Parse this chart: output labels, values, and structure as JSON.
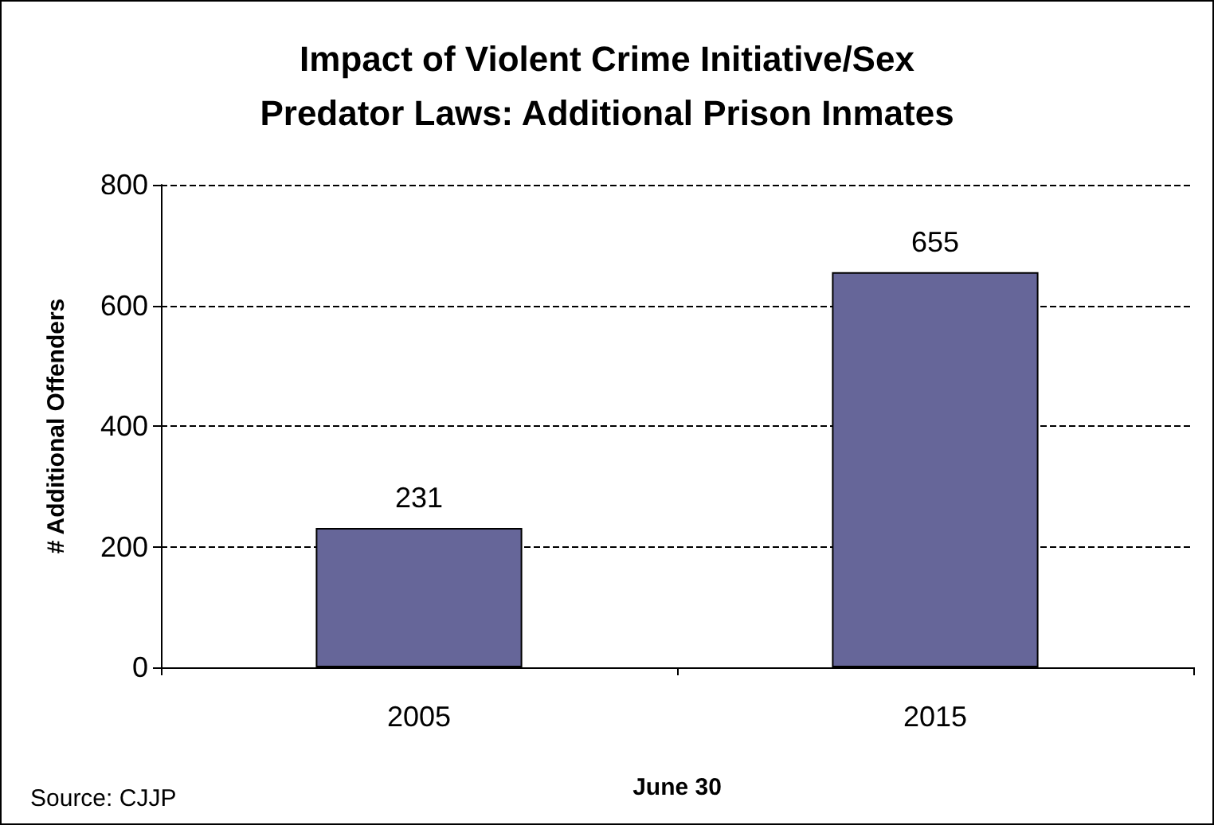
{
  "chart_data": {
    "type": "bar",
    "title": "Impact of Violent Crime Initiative/Sex\nPredator Laws: Additional Prison Inmates",
    "xlabel": "June 30",
    "ylabel": "# Additional Offenders",
    "categories": [
      "2005",
      "2015"
    ],
    "series": [
      {
        "color": "#666699",
        "values": [
          231,
          655
        ]
      }
    ],
    "ylim": [
      0,
      800
    ],
    "yticks": [
      0,
      200,
      400,
      600,
      800
    ],
    "grid": "y",
    "data_labels": true,
    "annotations": [
      "Source: CJJP"
    ]
  }
}
